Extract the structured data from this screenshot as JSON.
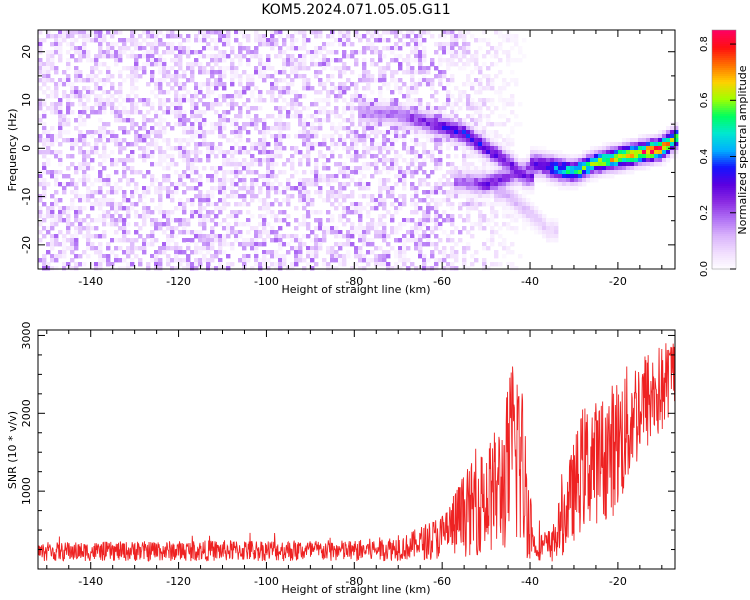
{
  "title": "KOM5.2024.071.05.05.G11",
  "chart_data": [
    {
      "type": "heatmap",
      "xlabel": "Height of straight line (km)",
      "ylabel": "Frequency (Hz)",
      "xlim": [
        -152,
        -7
      ],
      "ylim": [
        -25,
        24.5
      ],
      "xticks": [
        -140,
        -120,
        -100,
        -80,
        -60,
        -40,
        -20
      ],
      "yticks": [
        -20,
        -10,
        0,
        10,
        20
      ],
      "colorbar": {
        "label": "Normalized spectral amplitude",
        "range": [
          0,
          0.85
        ],
        "ticks": [
          0.0,
          0.2,
          0.4,
          0.6,
          0.8
        ],
        "colors": [
          "#ffffff",
          "#f1defe",
          "#d9b3fb",
          "#b070f5",
          "#8a2be2",
          "#5a00e0",
          "#1414ff",
          "#00b0ff",
          "#00e8d0",
          "#00ff60",
          "#a0ff00",
          "#ffd000",
          "#ff7000",
          "#ff1010",
          "#ff0060"
        ]
      },
      "noise_region_x": [
        -152,
        -40
      ],
      "noise_level": 0.15,
      "ridges": [
        {
          "x": [
            -77,
            -70,
            -62,
            -55,
            -50,
            -45,
            -41
          ],
          "y": [
            7.5,
            7,
            5,
            3,
            0,
            -3,
            -6
          ],
          "amplitude": [
            0.18,
            0.2,
            0.3,
            0.38,
            0.32,
            0.3,
            0.28
          ]
        },
        {
          "x": [
            -55,
            -50,
            -45,
            -42,
            -38,
            -33
          ],
          "y": [
            -7,
            -7.5,
            -6,
            -5,
            -3.5,
            -5
          ],
          "amplitude": [
            0.2,
            0.3,
            0.26,
            0.22,
            0.28,
            0.4
          ]
        },
        {
          "x": [
            -38,
            -30,
            -25,
            -20,
            -15,
            -10,
            -7
          ],
          "y": [
            -3,
            -5,
            -3,
            -2,
            -1,
            0,
            2
          ],
          "amplitude": [
            0.3,
            0.55,
            0.6,
            0.72,
            0.78,
            0.85,
            0.6
          ]
        },
        {
          "x": [
            -46,
            -42,
            -38,
            -36
          ],
          "y": [
            -9,
            -12,
            -15,
            -17
          ],
          "amplitude": [
            0.14,
            0.12,
            0.1,
            0.08
          ]
        }
      ]
    },
    {
      "type": "line",
      "xlabel": "Height of straight line (km)",
      "ylabel": "SNR (10 * v/v)",
      "xlim": [
        -152,
        -7
      ],
      "ylim": [
        0,
        3070
      ],
      "xticks": [
        -140,
        -120,
        -100,
        -80,
        -60,
        -40,
        -20
      ],
      "yticks": [
        1000,
        2000,
        3000
      ],
      "color": "#ee2222",
      "envelope": [
        {
          "x": -152,
          "base": 220,
          "spread": 120
        },
        {
          "x": -100,
          "base": 240,
          "spread": 140
        },
        {
          "x": -80,
          "base": 230,
          "spread": 140
        },
        {
          "x": -68,
          "base": 280,
          "spread": 170
        },
        {
          "x": -60,
          "base": 420,
          "spread": 300
        },
        {
          "x": -55,
          "base": 700,
          "spread": 550
        },
        {
          "x": -50,
          "base": 900,
          "spread": 700
        },
        {
          "x": -46,
          "base": 1100,
          "spread": 900
        },
        {
          "x": -43,
          "base": 1700,
          "spread": 1500
        },
        {
          "x": -41,
          "base": 1000,
          "spread": 900
        },
        {
          "x": -39,
          "base": 300,
          "spread": 180
        },
        {
          "x": -35,
          "base": 300,
          "spread": 220
        },
        {
          "x": -32,
          "base": 700,
          "spread": 500
        },
        {
          "x": -28,
          "base": 1300,
          "spread": 800
        },
        {
          "x": -24,
          "base": 1400,
          "spread": 800
        },
        {
          "x": -20,
          "base": 1600,
          "spread": 900
        },
        {
          "x": -15,
          "base": 2100,
          "spread": 700
        },
        {
          "x": -10,
          "base": 2300,
          "spread": 600
        },
        {
          "x": -7,
          "base": 2600,
          "spread": 450
        }
      ]
    }
  ]
}
